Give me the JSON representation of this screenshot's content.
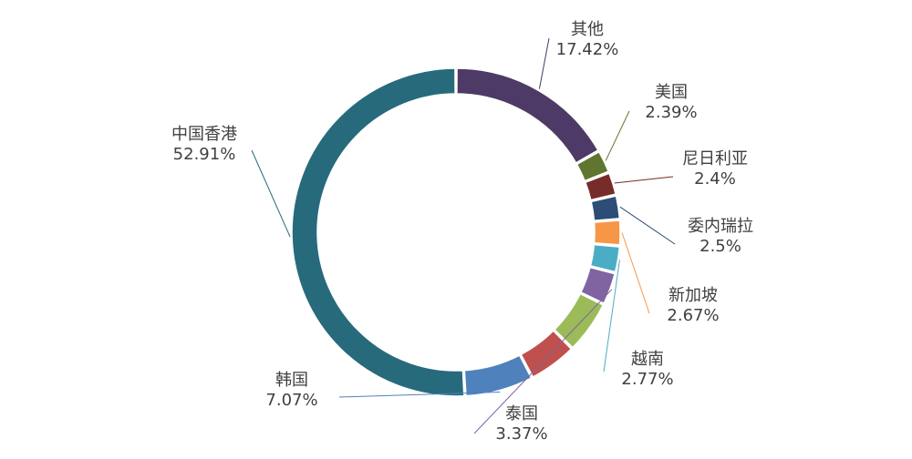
{
  "chart_data": {
    "type": "pie",
    "subtype": "donut",
    "slices": [
      {
        "label": "其他",
        "value": 17.42,
        "value_text": "17.42%",
        "color": "#4e3a66"
      },
      {
        "label": "美国",
        "value": 2.39,
        "value_text": "2.39%",
        "color": "#5f7530"
      },
      {
        "label": "尼日利亚",
        "value": 2.4,
        "value_text": "2.4%",
        "color": "#772c2a"
      },
      {
        "label": "委内瑞拉",
        "value": 2.5,
        "value_text": "2.5%",
        "color": "#2c4d75"
      },
      {
        "label": "新加坡",
        "value": 2.67,
        "value_text": "2.67%",
        "color": "#f79646"
      },
      {
        "label": "越南",
        "value": 2.77,
        "value_text": "2.77%",
        "color": "#4bacc6"
      },
      {
        "label": "泰国",
        "value": 3.37,
        "value_text": "3.37%",
        "color": "#8064a2"
      },
      {
        "label": "",
        "value": 5.5,
        "value_text": "",
        "color": "#9bbb59"
      },
      {
        "label": "",
        "value": 5.0,
        "value_text": "",
        "color": "#c0504d"
      },
      {
        "label": "韩国",
        "value": 7.07,
        "value_text": "7.07%",
        "color": "#4f81bd"
      },
      {
        "label": "中国香港",
        "value": 52.91,
        "value_text": "52.91%",
        "color": "#276a7c"
      }
    ],
    "legend": "none",
    "data_labels": "outside-with-leader-lines"
  }
}
